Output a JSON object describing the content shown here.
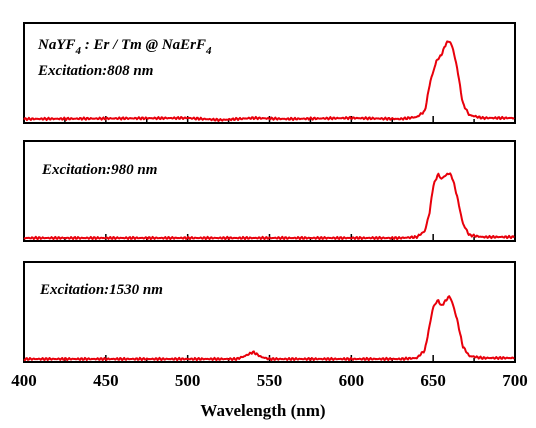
{
  "chart_data": [
    {
      "type": "line",
      "annotations": [
        "NaYF4 : Er / Tm @ NaErF4",
        "Excitation:808 nm"
      ],
      "compound": {
        "base": "NaYF",
        "sub1": "4",
        "mid": " : Er / Tm @ NaErF",
        "sub2": "4"
      },
      "excitation": "Excitation:808 nm",
      "color": "#e8000b",
      "x": [
        400,
        500,
        520,
        540,
        560,
        600,
        630,
        640,
        645,
        648,
        652,
        655,
        658,
        660,
        662,
        665,
        668,
        672,
        680,
        700
      ],
      "y": [
        0.04,
        0.05,
        0.03,
        0.05,
        0.04,
        0.05,
        0.04,
        0.06,
        0.12,
        0.4,
        0.62,
        0.68,
        0.8,
        0.82,
        0.75,
        0.52,
        0.2,
        0.08,
        0.05,
        0.05
      ]
    },
    {
      "type": "line",
      "excitation": "Excitation:980 nm",
      "color": "#e8000b",
      "x": [
        400,
        500,
        600,
        630,
        640,
        645,
        648,
        650,
        653,
        655,
        657,
        660,
        662,
        665,
        668,
        672,
        680,
        700
      ],
      "y": [
        0.03,
        0.03,
        0.03,
        0.03,
        0.04,
        0.1,
        0.3,
        0.55,
        0.67,
        0.62,
        0.65,
        0.68,
        0.62,
        0.42,
        0.18,
        0.06,
        0.04,
        0.04
      ]
    },
    {
      "type": "line",
      "excitation": "Excitation:1530 nm",
      "color": "#e8000b",
      "x": [
        400,
        500,
        530,
        535,
        540,
        545,
        550,
        600,
        630,
        640,
        645,
        648,
        650,
        653,
        655,
        657,
        660,
        662,
        665,
        668,
        672,
        680,
        700
      ],
      "y": [
        0.03,
        0.03,
        0.03,
        0.06,
        0.1,
        0.05,
        0.03,
        0.03,
        0.03,
        0.04,
        0.12,
        0.38,
        0.55,
        0.62,
        0.56,
        0.6,
        0.66,
        0.58,
        0.4,
        0.16,
        0.06,
        0.04,
        0.04
      ]
    }
  ],
  "x_axis": {
    "label": "Wavelength (nm)",
    "range": [
      400,
      700
    ],
    "ticks": [
      400,
      450,
      500,
      550,
      600,
      650,
      700
    ]
  }
}
